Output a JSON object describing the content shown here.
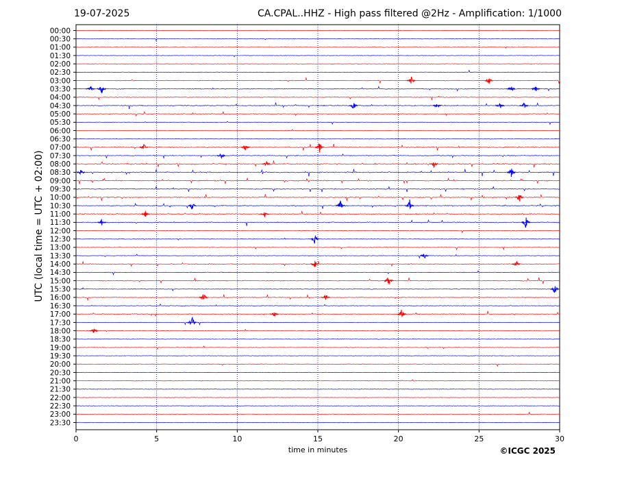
{
  "header": {
    "date": "19-07-2025",
    "title": "CA.CPAL..HHZ - High pass filtered @2Hz - Amplification: 1/1000"
  },
  "footer": {
    "copyright": "©ICGC 2025"
  },
  "chart_data": {
    "type": "line",
    "title": "CA.CPAL..HHZ - High pass filtered @2Hz - Amplification: 1/1000",
    "xlabel": "time in minutes",
    "ylabel": "UTC (local time = UTC + 02:00)",
    "xlim": [
      0,
      30
    ],
    "xticks": [
      0,
      5,
      10,
      15,
      20,
      25,
      30
    ],
    "vertical_grid_minutes": [
      5,
      10,
      15,
      20,
      25
    ],
    "row_colors": [
      "#ff0000",
      "#0000ff"
    ],
    "rows": [
      "00:00",
      "00:30",
      "01:00",
      "01:30",
      "02:00",
      "02:30",
      "03:00",
      "03:30",
      "04:00",
      "04:30",
      "05:00",
      "05:30",
      "06:00",
      "06:30",
      "07:00",
      "07:30",
      "08:00",
      "08:30",
      "09:00",
      "09:30",
      "10:00",
      "10:30",
      "11:00",
      "11:30",
      "12:00",
      "12:30",
      "13:00",
      "13:30",
      "14:00",
      "14:30",
      "15:00",
      "15:30",
      "16:00",
      "16:30",
      "17:00",
      "17:30",
      "18:00",
      "18:30",
      "19:00",
      "19:30",
      "20:00",
      "20:30",
      "21:00",
      "21:30",
      "22:00",
      "22:30",
      "23:00",
      "23:30"
    ],
    "activity_level": [
      0.05,
      0.05,
      0.08,
      0.02,
      0.02,
      0.02,
      0.25,
      0.3,
      0.2,
      0.45,
      0.25,
      0.06,
      0.08,
      0.06,
      0.45,
      0.35,
      0.6,
      0.6,
      0.5,
      0.4,
      0.5,
      0.5,
      0.45,
      0.45,
      0.15,
      0.12,
      0.12,
      0.12,
      0.3,
      0.2,
      0.3,
      0.2,
      0.3,
      0.15,
      0.3,
      0.12,
      0.15,
      0.15,
      0.12,
      0.1,
      0.08,
      0.1,
      0.01,
      0.01,
      0.01,
      0.01,
      0.01,
      0.01
    ],
    "events": [
      {
        "row": "03:00",
        "minute": 20.8,
        "amp": 0.6
      },
      {
        "row": "03:00",
        "minute": 25.6,
        "amp": 0.6
      },
      {
        "row": "03:30",
        "minute": 1.6,
        "amp": 0.7
      },
      {
        "row": "03:30",
        "minute": 0.9,
        "amp": 0.5
      },
      {
        "row": "03:30",
        "minute": 27.0,
        "amp": 0.6
      },
      {
        "row": "03:30",
        "minute": 28.5,
        "amp": 0.5
      },
      {
        "row": "04:30",
        "minute": 17.2,
        "amp": 0.7
      },
      {
        "row": "04:30",
        "minute": 26.3,
        "amp": 0.6
      },
      {
        "row": "04:30",
        "minute": 22.4,
        "amp": 0.5
      },
      {
        "row": "04:30",
        "minute": 27.8,
        "amp": 0.5
      },
      {
        "row": "07:00",
        "minute": 4.2,
        "amp": 0.6
      },
      {
        "row": "07:00",
        "minute": 10.5,
        "amp": 0.7
      },
      {
        "row": "07:00",
        "minute": 15.1,
        "amp": 0.8
      },
      {
        "row": "07:30",
        "minute": 9.0,
        "amp": 0.6
      },
      {
        "row": "08:00",
        "minute": 11.8,
        "amp": 0.5
      },
      {
        "row": "08:00",
        "minute": 22.2,
        "amp": 0.6
      },
      {
        "row": "08:30",
        "minute": 0.3,
        "amp": 0.5
      },
      {
        "row": "08:30",
        "minute": 27.0,
        "amp": 0.7
      },
      {
        "row": "10:00",
        "minute": 27.5,
        "amp": 0.8
      },
      {
        "row": "10:30",
        "minute": 7.2,
        "amp": 0.6
      },
      {
        "row": "10:30",
        "minute": 16.4,
        "amp": 0.8
      },
      {
        "row": "10:30",
        "minute": 20.7,
        "amp": 0.9
      },
      {
        "row": "11:00",
        "minute": 4.3,
        "amp": 0.5
      },
      {
        "row": "11:00",
        "minute": 11.7,
        "amp": 0.5
      },
      {
        "row": "11:30",
        "minute": 1.6,
        "amp": 0.6
      },
      {
        "row": "11:30",
        "minute": 27.9,
        "amp": 0.9
      },
      {
        "row": "12:30",
        "minute": 14.8,
        "amp": 0.7
      },
      {
        "row": "13:30",
        "minute": 21.6,
        "amp": 0.5
      },
      {
        "row": "14:00",
        "minute": 14.8,
        "amp": 0.6
      },
      {
        "row": "14:00",
        "minute": 27.3,
        "amp": 0.6
      },
      {
        "row": "15:00",
        "minute": 19.4,
        "amp": 0.9
      },
      {
        "row": "15:30",
        "minute": 29.7,
        "amp": 0.7
      },
      {
        "row": "16:00",
        "minute": 7.9,
        "amp": 0.8
      },
      {
        "row": "16:00",
        "minute": 15.5,
        "amp": 0.5
      },
      {
        "row": "17:00",
        "minute": 20.2,
        "amp": 0.8
      },
      {
        "row": "17:00",
        "minute": 12.3,
        "amp": 0.5
      },
      {
        "row": "17:30",
        "minute": 7.2,
        "amp": 0.9
      },
      {
        "row": "18:00",
        "minute": 1.1,
        "amp": 0.5
      }
    ],
    "grid": true
  }
}
